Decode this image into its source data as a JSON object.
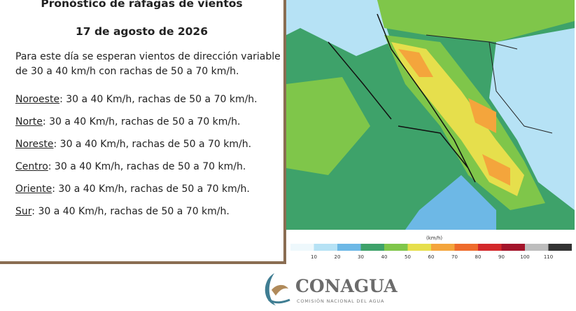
{
  "panel": {
    "title": "Pronóstico de ráfagas de vientos",
    "date": "17 de agosto de 2026",
    "intro": [
      "Para este día se esperan vientos de dirección variable",
      "de 30 a 40 km/h con rachas de 50 a 70 km/h."
    ],
    "regions": [
      {
        "name": "Noroeste",
        "detail": ":  30 a 40 Km/h, rachas de 50 a 70 km/h."
      },
      {
        "name": "Norte",
        "detail": ": 30 a 40 Km/h, rachas de 50 a 70 km/h."
      },
      {
        "name": "Noreste",
        "detail": ": 30 a 40 Km/h, rachas de 50 a 70 km/h."
      },
      {
        "name": "Centro",
        "detail": ":  30 a 40 Km/h, rachas de 50 a 70 km/h."
      },
      {
        "name": "Oriente",
        "detail": ":  30 a 40 Km/h, rachas de 50 a 70 km/h."
      },
      {
        "name": "Sur",
        "detail": ":  30 a 40 Km/h, rachas de 50 a 70 km/h."
      }
    ]
  },
  "legend": {
    "unit": "(km/h)",
    "ticks": [
      10,
      20,
      30,
      40,
      50,
      60,
      70,
      80,
      90,
      100,
      110
    ],
    "colors": [
      "#eef8fc",
      "#b6e2f5",
      "#6db8e6",
      "#3ea26a",
      "#7fc64a",
      "#e6df4c",
      "#f4a53c",
      "#ee6b2c",
      "#d3282a",
      "#a3142a",
      "#bdbdbd",
      "#333333"
    ]
  },
  "logo": {
    "name": "CONAGUA",
    "subtitle": "COMISIÓN NACIONAL DEL AGUA"
  }
}
